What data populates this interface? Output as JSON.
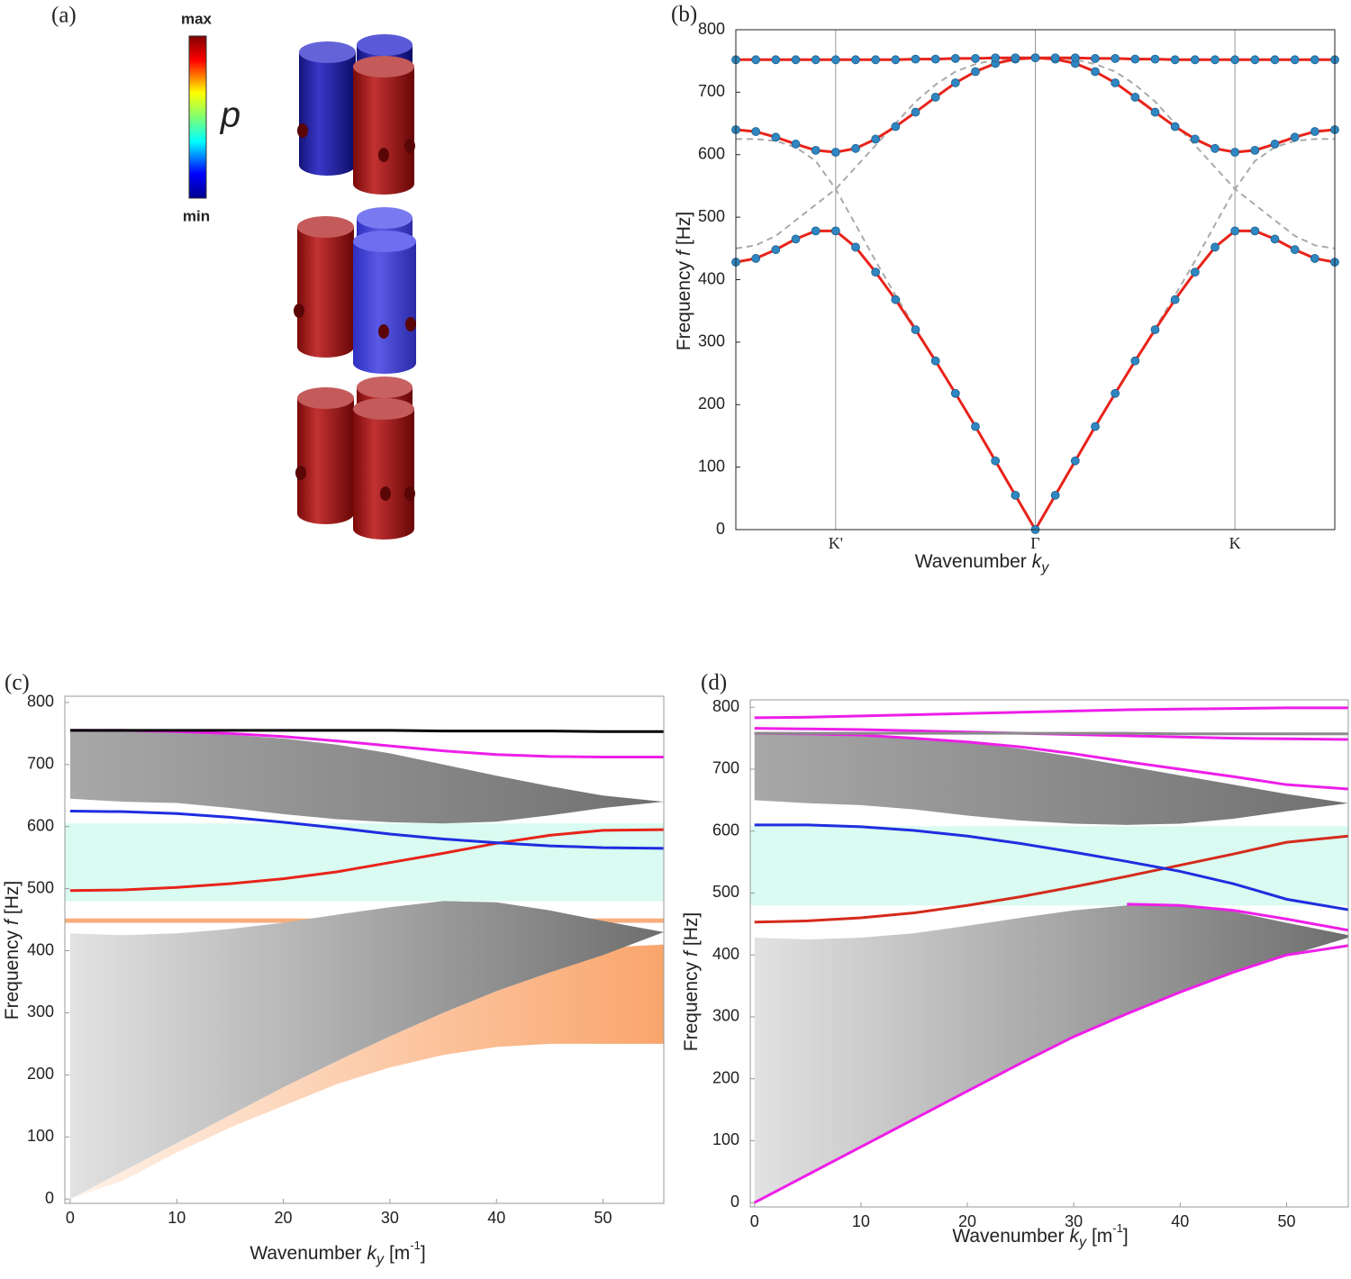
{
  "panel_a": {
    "label": "(a)",
    "colorbar": {
      "max": "max",
      "min": "min"
    },
    "symbol": "p"
  },
  "chart_data": [
    {
      "type": "line",
      "label": "(b)",
      "xlabel": [
        {
          "text": "Wavenumber"
        },
        {
          "text": "k",
          "style": "italic"
        },
        {
          "text": "y",
          "style": "sub"
        }
      ],
      "ylabel": [
        {
          "text": "Frequency"
        },
        {
          "text": "f",
          "style": "italic"
        },
        {
          "text": "[Hz]"
        }
      ],
      "xlim": [
        -1.5,
        1.5
      ],
      "ylim": [
        0,
        800
      ],
      "xticks": [
        {
          "value": -1,
          "label": "K'"
        },
        {
          "value": 0,
          "label": "Γ"
        },
        {
          "value": 1,
          "label": "K"
        }
      ],
      "yticks": [
        0,
        100,
        200,
        300,
        400,
        500,
        600,
        700,
        800
      ],
      "xgrid": true,
      "x": [
        -1.5,
        -1.4,
        -1.3,
        -1.2,
        -1.1,
        -1,
        -0.9,
        -0.8,
        -0.7,
        -0.6,
        -0.5,
        -0.4,
        -0.3,
        -0.2,
        -0.1,
        0,
        0.1,
        0.2,
        0.3,
        0.4,
        0.5,
        0.6,
        0.7,
        0.8,
        0.9,
        1,
        1.1,
        1.2,
        1.3,
        1.4,
        1.5
      ],
      "series": [
        {
          "kind": "line",
          "color": "#aaaaaa",
          "dash": true,
          "values": [
            625,
            625,
            622,
            612,
            590,
            545,
            488,
            430,
            375,
            322,
            270,
            218,
            165,
            110,
            55,
            0,
            55,
            110,
            165,
            218,
            270,
            322,
            375,
            430,
            488,
            545,
            590,
            612,
            622,
            625,
            625
          ]
        },
        {
          "kind": "line",
          "color": "#aaaaaa",
          "dash": true,
          "values": [
            450,
            455,
            470,
            495,
            520,
            545,
            580,
            615,
            650,
            685,
            712,
            733,
            745,
            752,
            755,
            755,
            755,
            752,
            745,
            733,
            712,
            685,
            650,
            615,
            580,
            545,
            520,
            495,
            470,
            455,
            450
          ]
        },
        {
          "kind": "line",
          "color": "#e8231a",
          "marker_color": "#2f86c0",
          "values": [
            428,
            434,
            448,
            465,
            478,
            478,
            452,
            412,
            368,
            320,
            270,
            218,
            165,
            110,
            55,
            0,
            55,
            110,
            165,
            218,
            270,
            320,
            368,
            412,
            452,
            478,
            478,
            465,
            448,
            434,
            428
          ]
        },
        {
          "kind": "line",
          "color": "#e8231a",
          "marker_color": "#2f86c0",
          "values": [
            640,
            637,
            628,
            617,
            607,
            604,
            610,
            625,
            645,
            668,
            692,
            715,
            733,
            746,
            753,
            755,
            753,
            746,
            733,
            715,
            692,
            668,
            645,
            625,
            610,
            604,
            607,
            617,
            628,
            637,
            640
          ]
        },
        {
          "kind": "line",
          "color": "#e8231a",
          "marker_color": "#2f86c0",
          "values": [
            752,
            752,
            752,
            752,
            752,
            752,
            752,
            752,
            752,
            753,
            753,
            754,
            754,
            755,
            755,
            755,
            755,
            755,
            754,
            754,
            753,
            753,
            752,
            752,
            752,
            752,
            752,
            752,
            752,
            752,
            752
          ]
        }
      ]
    },
    {
      "type": "band",
      "label": "(c)",
      "xlabel": [
        {
          "text": "Wavenumber"
        },
        {
          "text": "k",
          "style": "italic"
        },
        {
          "text": "y",
          "style": "sub"
        },
        {
          "text": "[m"
        },
        {
          "text": "-1",
          "style": "sup"
        },
        {
          "text": "]"
        }
      ],
      "ylabel": [
        {
          "text": "Frequency"
        },
        {
          "text": "f",
          "style": "italic"
        },
        {
          "text": "[Hz]"
        }
      ],
      "xlim": [
        -0.5,
        55.7
      ],
      "ylim": [
        -7,
        810
      ],
      "xticks": [
        0,
        10,
        20,
        30,
        40,
        50
      ],
      "yticks": [
        0,
        100,
        200,
        300,
        400,
        500,
        600,
        700,
        800
      ],
      "x": [
        0,
        5,
        10,
        15,
        20,
        25,
        30,
        35,
        40,
        45,
        50,
        55.7
      ],
      "series": [
        {
          "kind": "hspan",
          "color": "#d9fbf1",
          "range": [
            480,
            605
          ]
        },
        {
          "kind": "hspan",
          "color": "#f9ad7c",
          "range": [
            445,
            452
          ]
        },
        {
          "kind": "band",
          "gradient": [
            "#fff3ea",
            "#f9a56c"
          ],
          "lower": [
            0,
            30,
            75,
            115,
            150,
            185,
            212,
            232,
            245,
            250,
            250,
            250
          ],
          "upper": [
            0,
            45,
            90,
            135,
            180,
            222,
            262,
            300,
            335,
            365,
            405,
            410
          ]
        },
        {
          "kind": "band",
          "gradient": [
            "#e2e2e2",
            "#6e6e6e"
          ],
          "lower": [
            0,
            45,
            90,
            135,
            180,
            222,
            262,
            300,
            335,
            365,
            393,
            430
          ],
          "upper": [
            428,
            425,
            428,
            435,
            445,
            458,
            470,
            480,
            478,
            465,
            448,
            430
          ]
        },
        {
          "kind": "band",
          "gradient": [
            "#a8a8a8",
            "#707070"
          ],
          "lower": [
            645,
            640,
            638,
            630,
            620,
            612,
            607,
            605,
            608,
            618,
            630,
            640
          ],
          "upper": [
            755,
            755,
            752,
            748,
            742,
            732,
            718,
            700,
            682,
            665,
            650,
            640
          ]
        },
        {
          "kind": "line",
          "color": "#e8231a",
          "values": [
            497,
            498,
            502,
            508,
            516,
            527,
            542,
            557,
            573,
            586,
            594,
            595
          ]
        },
        {
          "kind": "line",
          "color": "#1f2de0",
          "values": [
            625,
            624,
            621,
            615,
            607,
            598,
            588,
            580,
            574,
            569,
            566,
            565
          ]
        },
        {
          "kind": "line",
          "color": "#ee1ee8",
          "values": [
            755,
            755,
            753,
            750,
            745,
            738,
            730,
            722,
            716,
            713,
            712,
            712
          ]
        },
        {
          "kind": "line",
          "color": "#000000",
          "values": [
            755,
            755,
            755,
            755,
            755,
            755,
            755,
            754,
            754,
            754,
            753,
            753
          ]
        }
      ]
    },
    {
      "type": "band",
      "label": "(d)",
      "xlabel": [
        {
          "text": "Wavenumber"
        },
        {
          "text": "k",
          "style": "italic"
        },
        {
          "text": "y",
          "style": "sub"
        },
        {
          "text": "[m"
        },
        {
          "text": "-1",
          "style": "sup"
        },
        {
          "text": "]"
        }
      ],
      "ylabel": [
        {
          "text": "Frequency"
        },
        {
          "text": "f",
          "style": "italic"
        },
        {
          "text": "[Hz]"
        }
      ],
      "xlim": [
        -0.4,
        55.8
      ],
      "ylim": [
        -7,
        812
      ],
      "xticks": [
        0,
        10,
        20,
        30,
        40,
        50
      ],
      "yticks": [
        0,
        100,
        200,
        300,
        400,
        500,
        600,
        700,
        800
      ],
      "x": [
        0,
        5,
        10,
        15,
        20,
        25,
        30,
        35,
        40,
        45,
        50,
        55.8
      ],
      "series": [
        {
          "kind": "hspan",
          "color": "#d9fbf1",
          "range": [
            480,
            608
          ]
        },
        {
          "kind": "band",
          "gradient": [
            "#e2e2e2",
            "#6e6e6e"
          ],
          "lower": [
            0,
            45,
            90,
            135,
            180,
            225,
            268,
            305,
            340,
            372,
            398,
            428
          ],
          "upper": [
            428,
            425,
            428,
            435,
            447,
            460,
            472,
            480,
            480,
            470,
            452,
            432
          ]
        },
        {
          "kind": "band",
          "gradient": [
            "#a8a8a8",
            "#707070"
          ],
          "lower": [
            650,
            645,
            642,
            635,
            625,
            617,
            612,
            610,
            612,
            620,
            632,
            645
          ],
          "upper": [
            758,
            756,
            753,
            749,
            743,
            733,
            720,
            705,
            690,
            675,
            660,
            645
          ]
        },
        {
          "kind": "line",
          "color": "#ee1ee8",
          "values": [
            0,
            45,
            90,
            135,
            180,
            225,
            268,
            305,
            340,
            372,
            400,
            415
          ]
        },
        {
          "kind": "line",
          "color": "#ee1ee8",
          "values": [
            null,
            null,
            null,
            null,
            null,
            null,
            null,
            482,
            480,
            472,
            458,
            440
          ]
        },
        {
          "kind": "line",
          "color": "#d42a1c",
          "values": [
            453,
            455,
            460,
            468,
            480,
            494,
            510,
            527,
            545,
            563,
            582,
            592
          ]
        },
        {
          "kind": "line",
          "color": "#1f2de0",
          "values": [
            610,
            610,
            607,
            601,
            592,
            580,
            566,
            551,
            535,
            515,
            490,
            473
          ]
        },
        {
          "kind": "line",
          "color": "#ee1ee8",
          "values": [
            758,
            757,
            755,
            750,
            744,
            736,
            725,
            712,
            700,
            688,
            675,
            668
          ]
        },
        {
          "kind": "line",
          "color": "#ee1ee8",
          "values": [
            766,
            765,
            764,
            762,
            760,
            758,
            756,
            754,
            752,
            750,
            749,
            748
          ]
        },
        {
          "kind": "line",
          "color": "#ee1ee8",
          "values": [
            783,
            784,
            786,
            788,
            790,
            792,
            794,
            796,
            797,
            798,
            799,
            799
          ]
        },
        {
          "kind": "line",
          "color": "#8a8a8a",
          "values": [
            758,
            758,
            758,
            758,
            758,
            758,
            758,
            758,
            757,
            757,
            757,
            757
          ]
        }
      ]
    }
  ]
}
